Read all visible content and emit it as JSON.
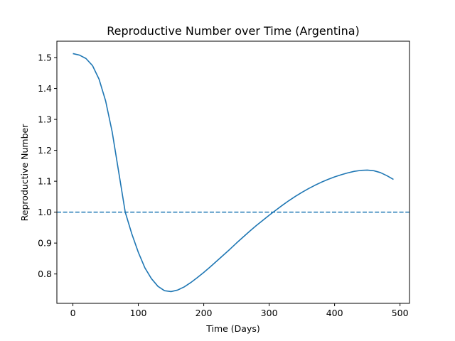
{
  "chart_data": {
    "type": "line",
    "title": "Reproductive Number over Time (Argentina)",
    "xlabel": "Time (Days)",
    "ylabel": "Reproductive Number",
    "xlim": [
      -24.5,
      514.5
    ],
    "ylim": [
      0.705,
      1.553
    ],
    "xticks": [
      0,
      100,
      200,
      300,
      400,
      500
    ],
    "yticks": [
      0.8,
      0.9,
      1.0,
      1.1,
      1.2,
      1.3,
      1.4,
      1.5
    ],
    "xtick_labels": [
      "0",
      "100",
      "200",
      "300",
      "400",
      "500"
    ],
    "ytick_labels": [
      "0.8",
      "0.9",
      "1.0",
      "1.1",
      "1.2",
      "1.3",
      "1.4",
      "1.5"
    ],
    "grid": false,
    "series": [
      {
        "color": "#1f77b4",
        "style": "solid",
        "x": [
          0,
          10,
          20,
          30,
          40,
          50,
          60,
          70,
          80,
          90,
          100,
          110,
          120,
          130,
          140,
          150,
          160,
          170,
          180,
          190,
          200,
          210,
          220,
          230,
          240,
          250,
          260,
          270,
          280,
          290,
          300,
          310,
          320,
          330,
          340,
          350,
          360,
          370,
          380,
          390,
          400,
          410,
          420,
          430,
          440,
          450,
          460,
          470,
          480,
          490
        ],
        "y": [
          1.513,
          1.508,
          1.497,
          1.474,
          1.43,
          1.36,
          1.26,
          1.13,
          1.0,
          0.93,
          0.87,
          0.82,
          0.785,
          0.76,
          0.746,
          0.743,
          0.748,
          0.758,
          0.772,
          0.788,
          0.805,
          0.823,
          0.842,
          0.861,
          0.88,
          0.9,
          0.919,
          0.938,
          0.956,
          0.973,
          0.99,
          1.006,
          1.022,
          1.037,
          1.051,
          1.064,
          1.076,
          1.087,
          1.097,
          1.106,
          1.114,
          1.121,
          1.127,
          1.132,
          1.135,
          1.136,
          1.134,
          1.128,
          1.118,
          1.106
        ]
      },
      {
        "color": "#1f77b4",
        "style": "dashed",
        "x": [
          -24.5,
          514.5
        ],
        "y": [
          1.0,
          1.0
        ]
      }
    ]
  }
}
